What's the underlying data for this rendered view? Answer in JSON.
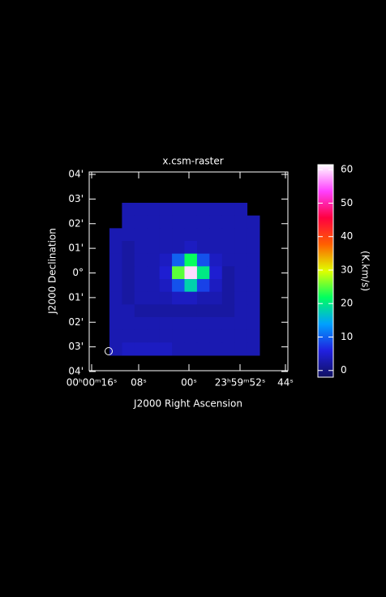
{
  "chart_data": {
    "type": "image",
    "title": "x.csm-raster",
    "xlabel": "J2000 Right Ascension",
    "ylabel": "J2000 Declination",
    "x_tick_labels": [
      "00ʰ00ᵐ16ˢ",
      "08ˢ",
      "00ˢ",
      "23ʰ59ᵐ52ˢ",
      "44ˢ"
    ],
    "y_tick_labels": [
      "04'",
      "03'",
      "02'",
      "01'",
      "0°",
      "01'",
      "02'",
      "03'",
      "04'"
    ],
    "z": [
      [
        null,
        3,
        3,
        3,
        3,
        3,
        3,
        3,
        3,
        3,
        3,
        null
      ],
      [
        null,
        3,
        3,
        3,
        3,
        3,
        3,
        3,
        3,
        3,
        3,
        3
      ],
      [
        3,
        3,
        3,
        3,
        3,
        3,
        3,
        3,
        3,
        3,
        3,
        3
      ],
      [
        3,
        2,
        3,
        3,
        3,
        3,
        4,
        3,
        3,
        3,
        3,
        3
      ],
      [
        3,
        2,
        3,
        3,
        4,
        10,
        22,
        9,
        4,
        3,
        3,
        3
      ],
      [
        3,
        2,
        3,
        3,
        5,
        25,
        60,
        20,
        5,
        2,
        3,
        3
      ],
      [
        3,
        2,
        3,
        3,
        4,
        9,
        18,
        8,
        4,
        2,
        3,
        3
      ],
      [
        3,
        2,
        3,
        3,
        3,
        4,
        4,
        3,
        3,
        2,
        3,
        3
      ],
      [
        3,
        3,
        2,
        2,
        2,
        2,
        2,
        2,
        2,
        2,
        3,
        3
      ],
      [
        3,
        3,
        3,
        3,
        3,
        3,
        3,
        3,
        3,
        3,
        3,
        3
      ],
      [
        3,
        3,
        3,
        3,
        3,
        3,
        3,
        3,
        3,
        3,
        3,
        3
      ],
      [
        3,
        4,
        4,
        4,
        4,
        3,
        3,
        3,
        3,
        3,
        3,
        3
      ]
    ],
    "colorbar_label": "(K.km/s)",
    "clim": [
      -2,
      61.5
    ],
    "cticks": [
      0,
      10,
      20,
      30,
      40,
      50,
      60
    ],
    "colormap": [
      "#101060",
      "#2020e0",
      "#00a0ff",
      "#00ff60",
      "#e0ff00",
      "#ff6000",
      "#ff0040",
      "#ff40ff",
      "#ffffff"
    ]
  }
}
